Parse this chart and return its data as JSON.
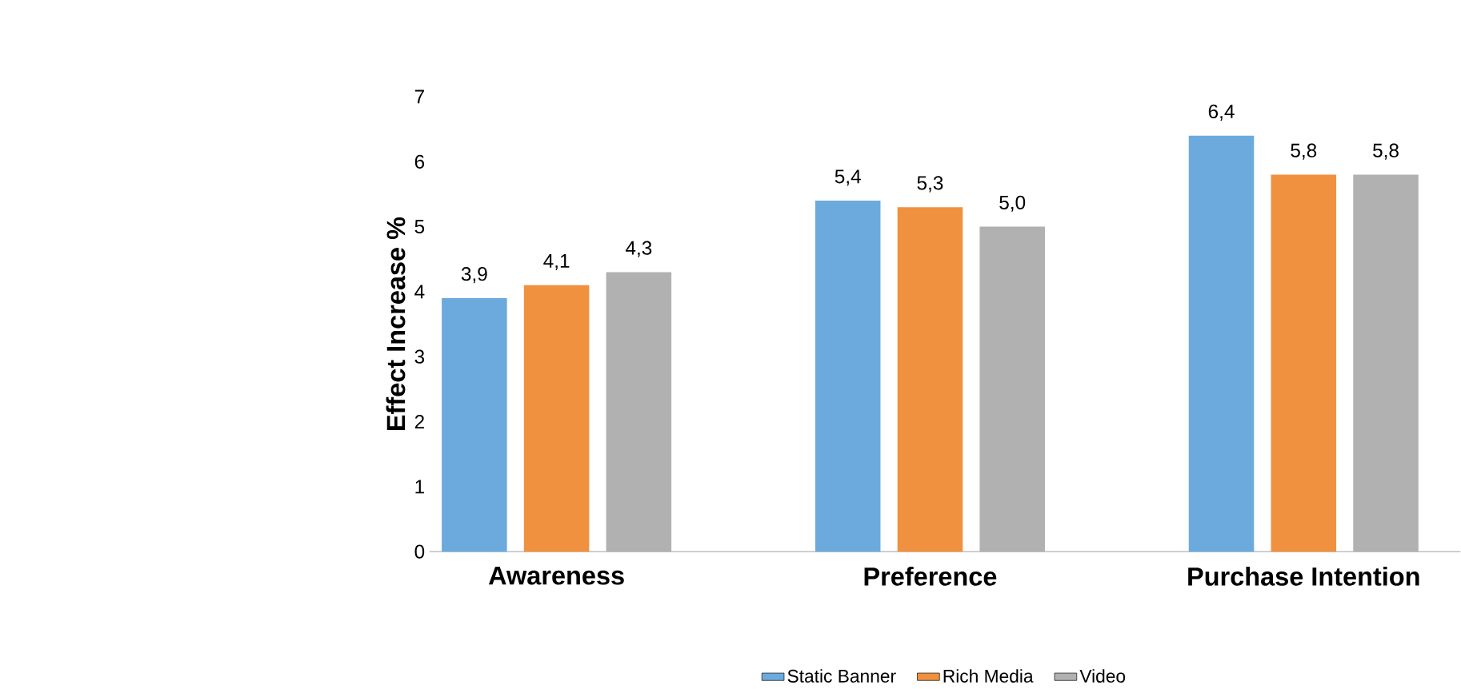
{
  "chart_data": {
    "type": "bar",
    "ylabel": "Effect Increase %",
    "categories": [
      "Awareness",
      "Preference",
      "Purchase Intention"
    ],
    "series": [
      {
        "name": "Static Banner",
        "color": "#6caade",
        "values": [
          3.9,
          5.4,
          6.4
        ],
        "value_labels": [
          "3,9",
          "5,4",
          "6,4"
        ]
      },
      {
        "name": "Rich Media",
        "color": "#f0913f",
        "values": [
          4.1,
          5.3,
          5.8
        ],
        "value_labels": [
          "4,1",
          "5,3",
          "5,8"
        ]
      },
      {
        "name": "Video",
        "color": "#b1b1b1",
        "values": [
          4.3,
          5.0,
          5.8
        ],
        "value_labels": [
          "4,3",
          "5,0",
          "5,8"
        ]
      }
    ],
    "ylim": [
      0,
      7
    ],
    "yticks": [
      0,
      1,
      2,
      3,
      4,
      5,
      6,
      7
    ],
    "grid": false,
    "legend": "bottom"
  }
}
